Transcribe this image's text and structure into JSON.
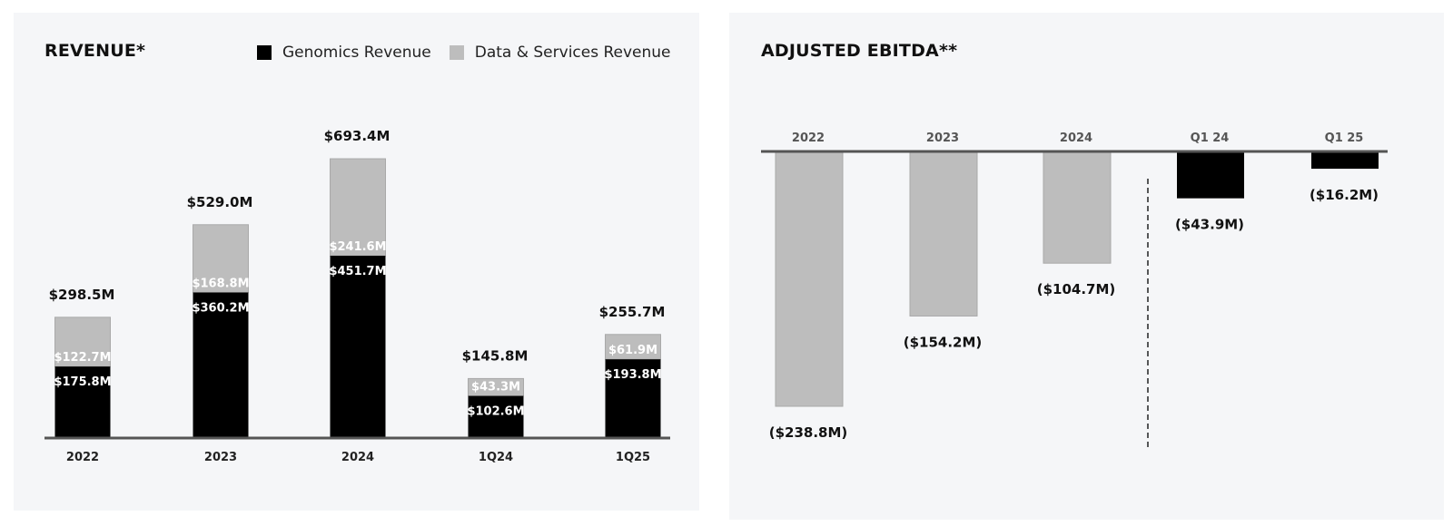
{
  "chart_data": [
    {
      "type": "bar",
      "stacked": true,
      "title": "REVENUE*",
      "categories": [
        "2022",
        "2023",
        "2024",
        "1Q24",
        "1Q25"
      ],
      "series": [
        {
          "name": "Genomics Revenue",
          "color": "#000000",
          "values": [
            175.8,
            360.2,
            451.7,
            102.6,
            193.8
          ],
          "labels": [
            "$175.8M",
            "$360.2M",
            "$451.7M",
            "$102.6M",
            "$193.8M"
          ]
        },
        {
          "name": "Data & Services Revenue",
          "color": "#bdbdbd",
          "values": [
            122.7,
            168.8,
            241.6,
            43.3,
            61.9
          ],
          "labels": [
            "$122.7M",
            "$168.8M",
            "$241.6M",
            "$43.3M",
            "$61.9M"
          ]
        }
      ],
      "totals": [
        298.5,
        529.0,
        693.4,
        145.8,
        255.7
      ],
      "total_labels": [
        "$298.5M",
        "$529.0M",
        "$693.4M",
        "$145.8M",
        "$255.7M"
      ],
      "xlabel": "",
      "ylabel": "",
      "ylim": [
        0,
        693.4
      ],
      "grid": false,
      "legend_position": "top-right"
    },
    {
      "type": "bar",
      "title": "ADJUSTED EBITDA**",
      "categories": [
        "2022",
        "2023",
        "2024",
        "Q1 24",
        "Q1 25"
      ],
      "values": [
        -238.8,
        -154.2,
        -104.7,
        -43.9,
        -16.2
      ],
      "labels": [
        "($238.8M)",
        "($154.2M)",
        "($104.7M)",
        "($43.9M)",
        "($16.2M)"
      ],
      "colors": [
        "#bdbdbd",
        "#bdbdbd",
        "#bdbdbd",
        "#000000",
        "#000000"
      ],
      "xlabel": "",
      "ylabel": "",
      "ylim": [
        -238.8,
        0
      ],
      "grid": false,
      "divider_after_category": "2024",
      "axis_position": "top"
    }
  ],
  "revenue": {
    "title": "REVENUE*",
    "legend": [
      {
        "label": "Genomics Revenue",
        "color": "#000000"
      },
      {
        "label": "Data & Services Revenue",
        "color": "#bdbdbd"
      }
    ]
  },
  "ebitda": {
    "title": "ADJUSTED EBITDA**"
  }
}
